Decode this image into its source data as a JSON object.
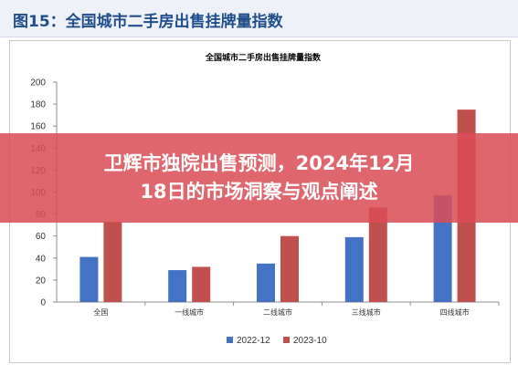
{
  "figure_title": "图15：全国城市二手房出售挂牌量指数",
  "overlay": {
    "line1": "卫辉市独院出售预测，2024年12月",
    "line2": "18日的市场洞察与观点阐述"
  },
  "chart_data": {
    "type": "bar",
    "title": "全国城市二手房出售挂牌量指数",
    "categories": [
      "全国",
      "一线城市",
      "二线城市",
      "三线城市",
      "四线城市"
    ],
    "series": [
      {
        "name": "2022-12",
        "color": "#4472c4",
        "values": [
          41,
          29,
          35,
          59,
          97
        ]
      },
      {
        "name": "2023-10",
        "color": "#c0504d",
        "values": [
          73,
          32,
          60,
          86,
          175
        ]
      }
    ],
    "ylim": [
      0,
      200
    ],
    "yticks": [
      0,
      20,
      40,
      60,
      80,
      100,
      120,
      140,
      160,
      180,
      200
    ],
    "legend": "bottom",
    "grid": false
  }
}
